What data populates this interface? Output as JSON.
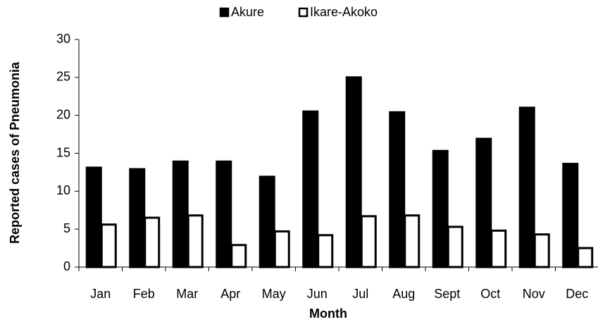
{
  "chart_data": {
    "type": "bar",
    "x_label": "Month",
    "y_label": "Reported cases of Pneumonia",
    "categories": [
      "Jan",
      "Feb",
      "Mar",
      "Apr",
      "May",
      "Jun",
      "Jul",
      "Aug",
      "Sept",
      "Oct",
      "Nov",
      "Dec"
    ],
    "series": [
      {
        "name": "Akure",
        "color": "#000000",
        "values": [
          13.1,
          12.9,
          13.9,
          13.9,
          11.9,
          20.5,
          25,
          20.4,
          15.3,
          16.9,
          21,
          13.6
        ]
      },
      {
        "name": "Ikare-Akoko",
        "color": "#ffffff",
        "values": [
          5.6,
          6.5,
          6.8,
          2.9,
          4.7,
          4.2,
          6.7,
          6.8,
          5.3,
          4.8,
          4.3,
          2.5
        ]
      }
    ],
    "ylim": [
      0,
      30
    ],
    "yticks": [
      0,
      5,
      10,
      15,
      20,
      25,
      30
    ],
    "legend": "top"
  }
}
